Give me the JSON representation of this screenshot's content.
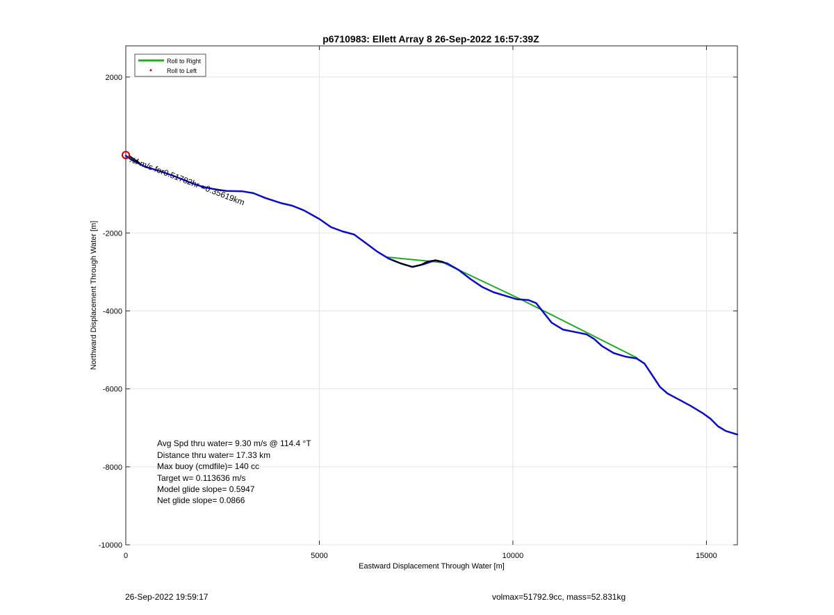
{
  "chart_data": {
    "type": "line",
    "title": "p6710983: Ellett Array 8 26-Sep-2022 16:57:39Z",
    "xlabel": "Eastward Displacement Through Water [m]",
    "ylabel": "Northward Displacement Through Water [m]",
    "xlim": [
      0,
      15800
    ],
    "ylim": [
      -10000,
      2800
    ],
    "xticks": [
      0,
      5000,
      10000,
      15000
    ],
    "yticks": [
      2000,
      -2000,
      -4000,
      -6000,
      -8000,
      -10000
    ],
    "grid": true,
    "legend_position": "top-left",
    "legend": [
      "Roll to Right",
      "Roll to Left"
    ],
    "series": [
      {
        "name": "Roll to Right",
        "color": "#1faa1f",
        "segments": [
          [
            [
              6750,
              -2620
            ],
            [
              8200,
              -2760
            ],
            [
              10200,
              -3700
            ],
            [
              12000,
              -4600
            ],
            [
              13200,
              -5200
            ]
          ]
        ]
      },
      {
        "name": "track",
        "color": "#0a0ac8",
        "x": [
          0,
          200,
          500,
          900,
          1300,
          1700,
          2000,
          2300,
          2600,
          3000,
          3300,
          3600,
          4000,
          4300,
          4600,
          5000,
          5300,
          5600,
          5900,
          6200,
          6500,
          6800,
          7100,
          7400,
          7700,
          8000,
          8300,
          8600,
          8900,
          9200,
          9500,
          9800,
          10100,
          10400,
          10600,
          10800,
          11000,
          11300,
          11600,
          11900,
          12100,
          12300,
          12600,
          12900,
          13200,
          13400,
          13600,
          13800,
          14000,
          14300,
          14600,
          14900,
          15100,
          15300,
          15500,
          15800
        ],
        "y": [
          -20,
          -150,
          -300,
          -420,
          -560,
          -720,
          -820,
          -880,
          -920,
          -930,
          -980,
          -1100,
          -1230,
          -1300,
          -1420,
          -1640,
          -1850,
          -1960,
          -2040,
          -2260,
          -2480,
          -2660,
          -2780,
          -2870,
          -2800,
          -2700,
          -2780,
          -2950,
          -3180,
          -3380,
          -3520,
          -3610,
          -3700,
          -3720,
          -3800,
          -4050,
          -4300,
          -4480,
          -4540,
          -4600,
          -4720,
          -4900,
          -5080,
          -5170,
          -5220,
          -5350,
          -5650,
          -5950,
          -6120,
          -6280,
          -6440,
          -6620,
          -6760,
          -6960,
          -7080,
          -7170
        ]
      },
      {
        "name": "",
        "color": "#000000",
        "segments": [
          [
            [
              6900,
              -2700
            ],
            [
              7100,
              -2780
            ],
            [
              7400,
              -2870
            ],
            [
              7600,
              -2830
            ],
            [
              7800,
              -2730
            ],
            [
              8000,
              -2700
            ],
            [
              8200,
              -2740
            ]
          ],
          [
            [
              100,
              -30
            ],
            [
              250,
              -130
            ],
            [
              350,
              -200
            ]
          ]
        ]
      }
    ],
    "markers": [
      {
        "type": "circle",
        "x": 0,
        "y": 0,
        "color": "#cc0000"
      }
    ],
    "annotations": {
      "rotated": "%f m/s for0.51782hr =0.35619km",
      "stats": [
        "Avg Spd thru water=  9.30 m/s @ 114.4 °T",
        "Distance thru water= 17.33 km",
        "Max buoy (cmdfile)= 140 cc",
        "Target w= 0.113636 m/s",
        "Model glide slope= 0.5947",
        "Net glide slope= 0.0866"
      ]
    }
  },
  "footer": {
    "timestamp": "26-Sep-2022 19:59:17",
    "volmax": "volmax=51792.9cc, mass=52.831kg"
  }
}
